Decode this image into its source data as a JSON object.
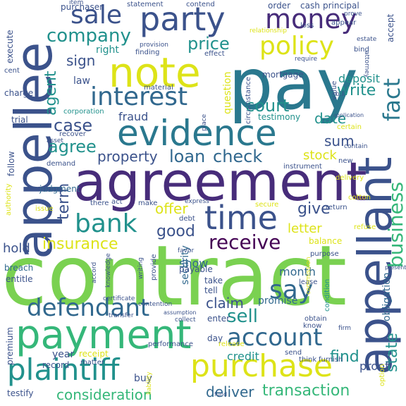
{
  "word_cloud": {
    "words": [
      {
        "text": "contract",
        "color": "#7ad151"
      },
      {
        "text": "pay",
        "color": "#2a788e"
      },
      {
        "text": "agreement",
        "color": "#472c7a"
      },
      {
        "text": "appellee",
        "color": "#3b528b"
      },
      {
        "text": "appellant",
        "color": "#3b528b"
      },
      {
        "text": "evidence",
        "color": "#2a788e"
      },
      {
        "text": "note",
        "color": "#dde318"
      },
      {
        "text": "party",
        "color": "#3b528b"
      },
      {
        "text": "payment",
        "color": "#35b779"
      },
      {
        "text": "purchase",
        "color": "#dde318"
      },
      {
        "text": "plaintiff",
        "color": "#21918c"
      },
      {
        "text": "money",
        "color": "#472c7a"
      },
      {
        "text": "time",
        "color": "#3b528b"
      },
      {
        "text": "interest",
        "color": "#31688e"
      },
      {
        "text": "defendant",
        "color": "#31688e"
      },
      {
        "text": "account",
        "color": "#31688e"
      },
      {
        "text": "bank",
        "color": "#21918c"
      },
      {
        "text": "policy",
        "color": "#dde318"
      },
      {
        "text": "sale",
        "color": "#3b528b"
      },
      {
        "text": "company",
        "color": "#21918c"
      },
      {
        "text": "receive",
        "color": "#440154"
      },
      {
        "text": "business",
        "color": "#35b779"
      },
      {
        "text": "fact",
        "color": "#2a788e"
      },
      {
        "text": "say",
        "color": "#31688e"
      },
      {
        "text": "price",
        "color": "#21918c"
      },
      {
        "text": "check",
        "color": "#31688e"
      },
      {
        "text": "loan",
        "color": "#31688e"
      },
      {
        "text": "court",
        "color": "#21918c"
      },
      {
        "text": "agree",
        "color": "#21918c"
      },
      {
        "text": "case",
        "color": "#3b528b"
      },
      {
        "text": "sell",
        "color": "#21918c"
      },
      {
        "text": "insurance",
        "color": "#dde318"
      },
      {
        "text": "consideration",
        "color": "#35b779"
      },
      {
        "text": "transaction",
        "color": "#35b779"
      },
      {
        "text": "deliver",
        "color": "#31688e"
      },
      {
        "text": "term",
        "color": "#3b528b"
      },
      {
        "text": "write",
        "color": "#21918c"
      },
      {
        "text": "agent",
        "color": "#21918c"
      },
      {
        "text": "claim",
        "color": "#3b528b"
      },
      {
        "text": "give",
        "color": "#3b528b"
      },
      {
        "text": "good",
        "color": "#3b528b"
      },
      {
        "text": "find",
        "color": "#21918c"
      },
      {
        "text": "state",
        "color": "#21918c"
      },
      {
        "text": "sign",
        "color": "#3b528b"
      },
      {
        "text": "date",
        "color": "#21918c"
      },
      {
        "text": "property",
        "color": "#3b528b"
      },
      {
        "text": "offer",
        "color": "#dde318"
      },
      {
        "text": "letter",
        "color": "#dde318"
      },
      {
        "text": "deposit",
        "color": "#21918c"
      },
      {
        "text": "sum",
        "color": "#3b528b"
      },
      {
        "text": "stock",
        "color": "#dde318"
      },
      {
        "text": "fraud",
        "color": "#3b528b"
      },
      {
        "text": "show",
        "color": "#31688e"
      },
      {
        "text": "credit",
        "color": "#21918c"
      },
      {
        "text": "month",
        "color": "#31688e"
      },
      {
        "text": "hold",
        "color": "#3b528b"
      },
      {
        "text": "security",
        "color": "#31688e"
      },
      {
        "text": "obligation",
        "color": "#31688e"
      },
      {
        "text": "proof",
        "color": "#3b528b"
      },
      {
        "text": "question",
        "color": "#dde318"
      },
      {
        "text": "mortgage",
        "color": "#3b528b"
      },
      {
        "text": "testimony",
        "color": "#21918c"
      },
      {
        "text": "promise",
        "color": "#31688e"
      },
      {
        "text": "right",
        "color": "#21918c"
      },
      {
        "text": "law",
        "color": "#3b528b"
      },
      {
        "text": "follow",
        "color": "#3b528b"
      },
      {
        "text": "authority",
        "color": "#dde318"
      },
      {
        "text": "judgment",
        "color": "#31688e"
      },
      {
        "text": "premium",
        "color": "#3b528b"
      },
      {
        "text": "year",
        "color": "#3b528b"
      },
      {
        "text": "receipt",
        "color": "#dde318"
      },
      {
        "text": "record",
        "color": "#3b528b"
      },
      {
        "text": "testify",
        "color": "#3b528b"
      },
      {
        "text": "buy",
        "color": "#3b528b"
      },
      {
        "text": "breach",
        "color": "#31688e"
      },
      {
        "text": "entitle",
        "color": "#3b528b"
      },
      {
        "text": "take",
        "color": "#3b528b"
      },
      {
        "text": "tell",
        "color": "#3b528b"
      },
      {
        "text": "day",
        "color": "#3b528b"
      },
      {
        "text": "enter",
        "color": "#3b528b"
      },
      {
        "text": "lease",
        "color": "#3b528b"
      },
      {
        "text": "payable",
        "color": "#3b528b"
      },
      {
        "text": "performance",
        "color": "#3b528b"
      },
      {
        "text": "furnish",
        "color": "#3b528b"
      },
      {
        "text": "send",
        "color": "#3b528b"
      },
      {
        "text": "think",
        "color": "#3b528b"
      },
      {
        "text": "know",
        "color": "#3b528b"
      },
      {
        "text": "condition",
        "color": "#21918c"
      },
      {
        "text": "balance",
        "color": "#dde318"
      },
      {
        "text": "refuse",
        "color": "#dde318"
      },
      {
        "text": "return",
        "color": "#3b528b"
      },
      {
        "text": "cotton",
        "color": "#dde318"
      },
      {
        "text": "delivery",
        "color": "#dde318"
      },
      {
        "text": "debt",
        "color": "#3b528b"
      },
      {
        "text": "instrument",
        "color": "#3b528b"
      },
      {
        "text": "execute",
        "color": "#3b528b"
      },
      {
        "text": "charge",
        "color": "#3b528b"
      },
      {
        "text": "trial",
        "color": "#3b528b"
      },
      {
        "text": "purchaser",
        "color": "#3b528b"
      },
      {
        "text": "statement",
        "color": "#3b528b"
      },
      {
        "text": "contend",
        "color": "#3b528b"
      },
      {
        "text": "order",
        "color": "#3b528b"
      },
      {
        "text": "cash",
        "color": "#3b528b"
      },
      {
        "text": "principal",
        "color": "#3b528b"
      },
      {
        "text": "finding",
        "color": "#3b528b"
      },
      {
        "text": "effect",
        "color": "#3b528b"
      },
      {
        "text": "material",
        "color": "#3b528b"
      },
      {
        "text": "corporation",
        "color": "#21918c"
      },
      {
        "text": "recover",
        "color": "#3b528b"
      },
      {
        "text": "cent",
        "color": "#3b528b"
      },
      {
        "text": "value",
        "color": "#3b528b"
      },
      {
        "text": "accept",
        "color": "#3b528b"
      },
      {
        "text": "certain",
        "color": "#dde318"
      },
      {
        "text": "demand",
        "color": "#3b528b"
      },
      {
        "text": "issue",
        "color": "#dde318"
      },
      {
        "text": "there",
        "color": "#3b528b"
      },
      {
        "text": "make",
        "color": "#3b528b"
      },
      {
        "text": "act",
        "color": "#3b528b"
      },
      {
        "text": "secure",
        "color": "#dde318"
      },
      {
        "text": "provide",
        "color": "#3b528b"
      },
      {
        "text": "writing",
        "color": "#3b528b"
      },
      {
        "text": "accord",
        "color": "#3b528b"
      },
      {
        "text": "certificate",
        "color": "#3b528b"
      },
      {
        "text": "knowledge",
        "color": "#3b528b"
      },
      {
        "text": "contention",
        "color": "#3b528b"
      },
      {
        "text": "release",
        "color": "#dde318"
      },
      {
        "text": "option",
        "color": "#dde318"
      },
      {
        "text": "appear",
        "color": "#3b528b"
      },
      {
        "text": "circumstance",
        "color": "#3b528b"
      },
      {
        "text": "new",
        "color": "#3b528b"
      },
      {
        "text": "obtain",
        "color": "#3b528b"
      },
      {
        "text": "matter",
        "color": "#3b528b"
      },
      {
        "text": "asset",
        "color": "#3b528b"
      },
      {
        "text": "item",
        "color": "#3b528b"
      },
      {
        "text": "loss",
        "color": "#3b528b"
      },
      {
        "text": "bind",
        "color": "#3b528b"
      },
      {
        "text": "attorney",
        "color": "#3b528b"
      },
      {
        "text": "estate",
        "color": "#3b528b"
      },
      {
        "text": "provision",
        "color": "#3b528b"
      },
      {
        "text": "fund",
        "color": "#3b528b"
      },
      {
        "text": "commission",
        "color": "#dde318"
      },
      {
        "text": "transfer",
        "color": "#3b528b"
      },
      {
        "text": "favor",
        "color": "#3b528b"
      },
      {
        "text": "purpose",
        "color": "#3b528b"
      },
      {
        "text": "place",
        "color": "#3b528b"
      },
      {
        "text": "express",
        "color": "#3b528b"
      },
      {
        "text": "relationship",
        "color": "#dde318"
      },
      {
        "text": "bill",
        "color": "#3b528b"
      },
      {
        "text": "contain",
        "color": "#3b528b"
      },
      {
        "text": "require",
        "color": "#3b528b"
      },
      {
        "text": "application",
        "color": "#3b528b"
      },
      {
        "text": "firm",
        "color": "#3b528b"
      },
      {
        "text": "assumption",
        "color": "#3b528b"
      },
      {
        "text": "collect",
        "color": "#3b528b"
      },
      {
        "text": "liability",
        "color": "#dde318"
      },
      {
        "text": "present",
        "color": "#3b528b"
      },
      {
        "text": "prove",
        "color": "#3b528b"
      }
    ]
  }
}
